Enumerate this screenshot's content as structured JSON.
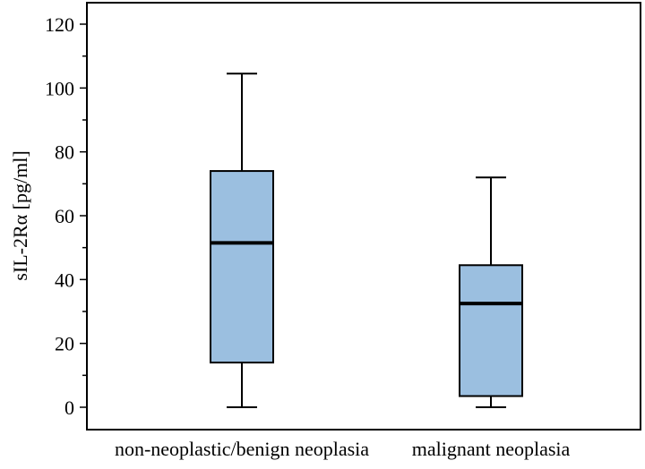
{
  "chart_data": {
    "type": "box",
    "title": "",
    "xlabel": "",
    "ylabel": "sIL-2Rα [pg/ml]",
    "ylim": [
      0,
      120
    ],
    "y_ticks": [
      0,
      20,
      40,
      60,
      80,
      100,
      120
    ],
    "y_minor_step": 10,
    "grid": false,
    "box_color": "#9bbfe0",
    "categories": [
      "non-neoplastic/benign neoplasia",
      "malignant neoplasia"
    ],
    "boxes": [
      {
        "category": "non-neoplastic/benign neoplasia",
        "min": 0,
        "q1": 14,
        "median": 51.5,
        "q3": 74,
        "max": 104.5
      },
      {
        "category": "malignant neoplasia",
        "min": 0,
        "q1": 3.5,
        "median": 32.5,
        "q3": 44.5,
        "max": 72
      }
    ]
  }
}
